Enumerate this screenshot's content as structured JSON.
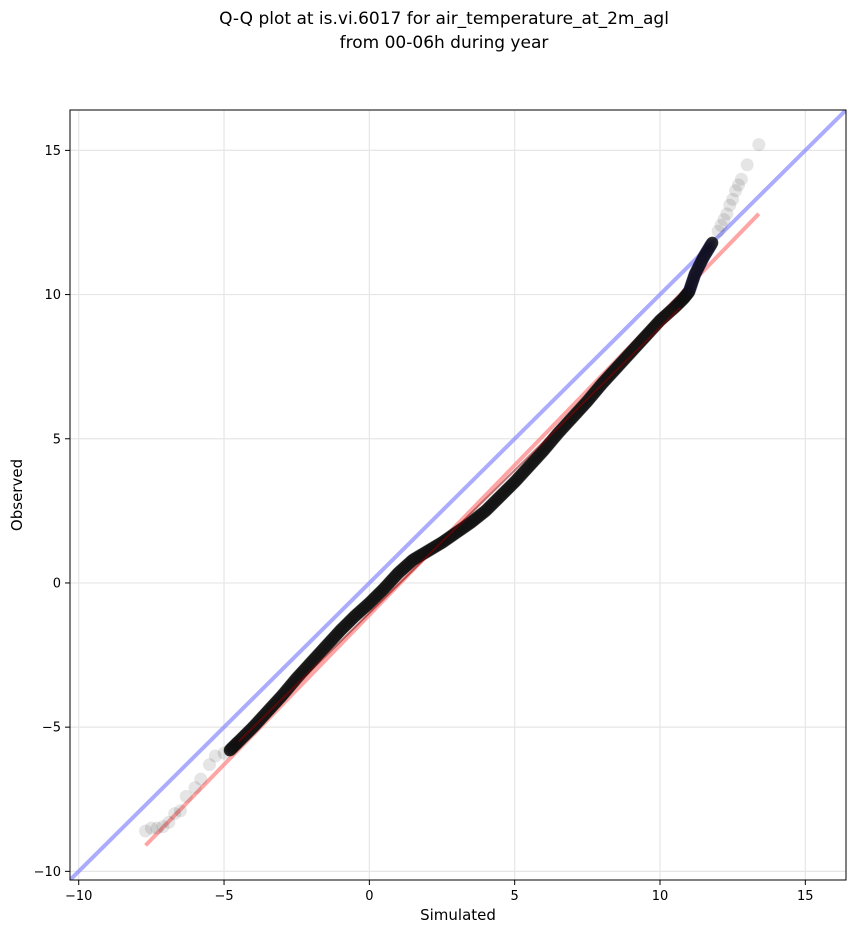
{
  "chart_data": {
    "type": "scatter",
    "title": "Q-Q plot at is.vi.6017 for air_temperature_at_2m_agl",
    "subtitle": "from 00-06h during year",
    "xlabel": "Simulated",
    "ylabel": "Observed",
    "xlim": [
      -10.3,
      16.4
    ],
    "ylim": [
      -10.3,
      16.4
    ],
    "x_ticks": [
      -10,
      -5,
      0,
      5,
      10,
      15
    ],
    "y_ticks": [
      -10,
      -5,
      0,
      5,
      10,
      15
    ],
    "x_tick_labels": [
      "−10",
      "−5",
      "0",
      "5",
      "10",
      "15"
    ],
    "y_tick_labels": [
      "−10",
      "−5",
      "0",
      "5",
      "10",
      "15"
    ],
    "grid": true,
    "colors": {
      "points": "#000000",
      "identity_line": "#7f7fff",
      "fit_line": "#ff7f7f",
      "upper_tail_points": "#00008b"
    },
    "quantile_curve": {
      "x": [
        -4.8,
        -4.5,
        -4.0,
        -3.5,
        -3.0,
        -2.5,
        -2.0,
        -1.5,
        -1.0,
        -0.5,
        0.0,
        0.5,
        1.0,
        1.5,
        2.0,
        2.5,
        3.0,
        3.5,
        4.0,
        4.5,
        5.0,
        5.5,
        6.0,
        6.5,
        7.0,
        7.5,
        8.0,
        8.5,
        9.0,
        9.5,
        10.0,
        10.5,
        10.8,
        11.0,
        11.2,
        11.5,
        11.8
      ],
      "y": [
        -5.8,
        -5.5,
        -5.0,
        -4.45,
        -3.9,
        -3.3,
        -2.75,
        -2.2,
        -1.65,
        -1.15,
        -0.7,
        -0.2,
        0.35,
        0.8,
        1.1,
        1.4,
        1.75,
        2.1,
        2.5,
        3.0,
        3.5,
        4.05,
        4.6,
        5.2,
        5.75,
        6.3,
        6.9,
        7.45,
        8.0,
        8.55,
        9.1,
        9.55,
        9.85,
        10.1,
        10.7,
        11.3,
        11.8
      ]
    },
    "tail_points": {
      "x": [
        -7.7,
        -7.5,
        -7.3,
        -7.1,
        -6.9,
        -6.7,
        -6.5,
        -6.3,
        -6.0,
        -5.8,
        -5.5,
        -5.3,
        -5.0,
        12.0,
        12.1,
        12.2,
        12.3,
        12.4,
        12.5,
        12.6,
        12.7,
        12.8,
        13.0,
        13.4
      ],
      "y": [
        -8.6,
        -8.5,
        -8.5,
        -8.45,
        -8.3,
        -8.0,
        -7.9,
        -7.4,
        -7.1,
        -6.8,
        -6.3,
        -6.0,
        -5.9,
        12.2,
        12.4,
        12.6,
        12.8,
        13.1,
        13.3,
        13.6,
        13.8,
        14.0,
        14.5,
        15.2
      ]
    },
    "identity_line": {
      "x": [
        -10.3,
        16.4
      ],
      "y": [
        -10.3,
        16.4
      ]
    },
    "fit_line": {
      "x": [
        -7.7,
        13.4
      ],
      "y": [
        -9.1,
        12.8
      ]
    }
  }
}
